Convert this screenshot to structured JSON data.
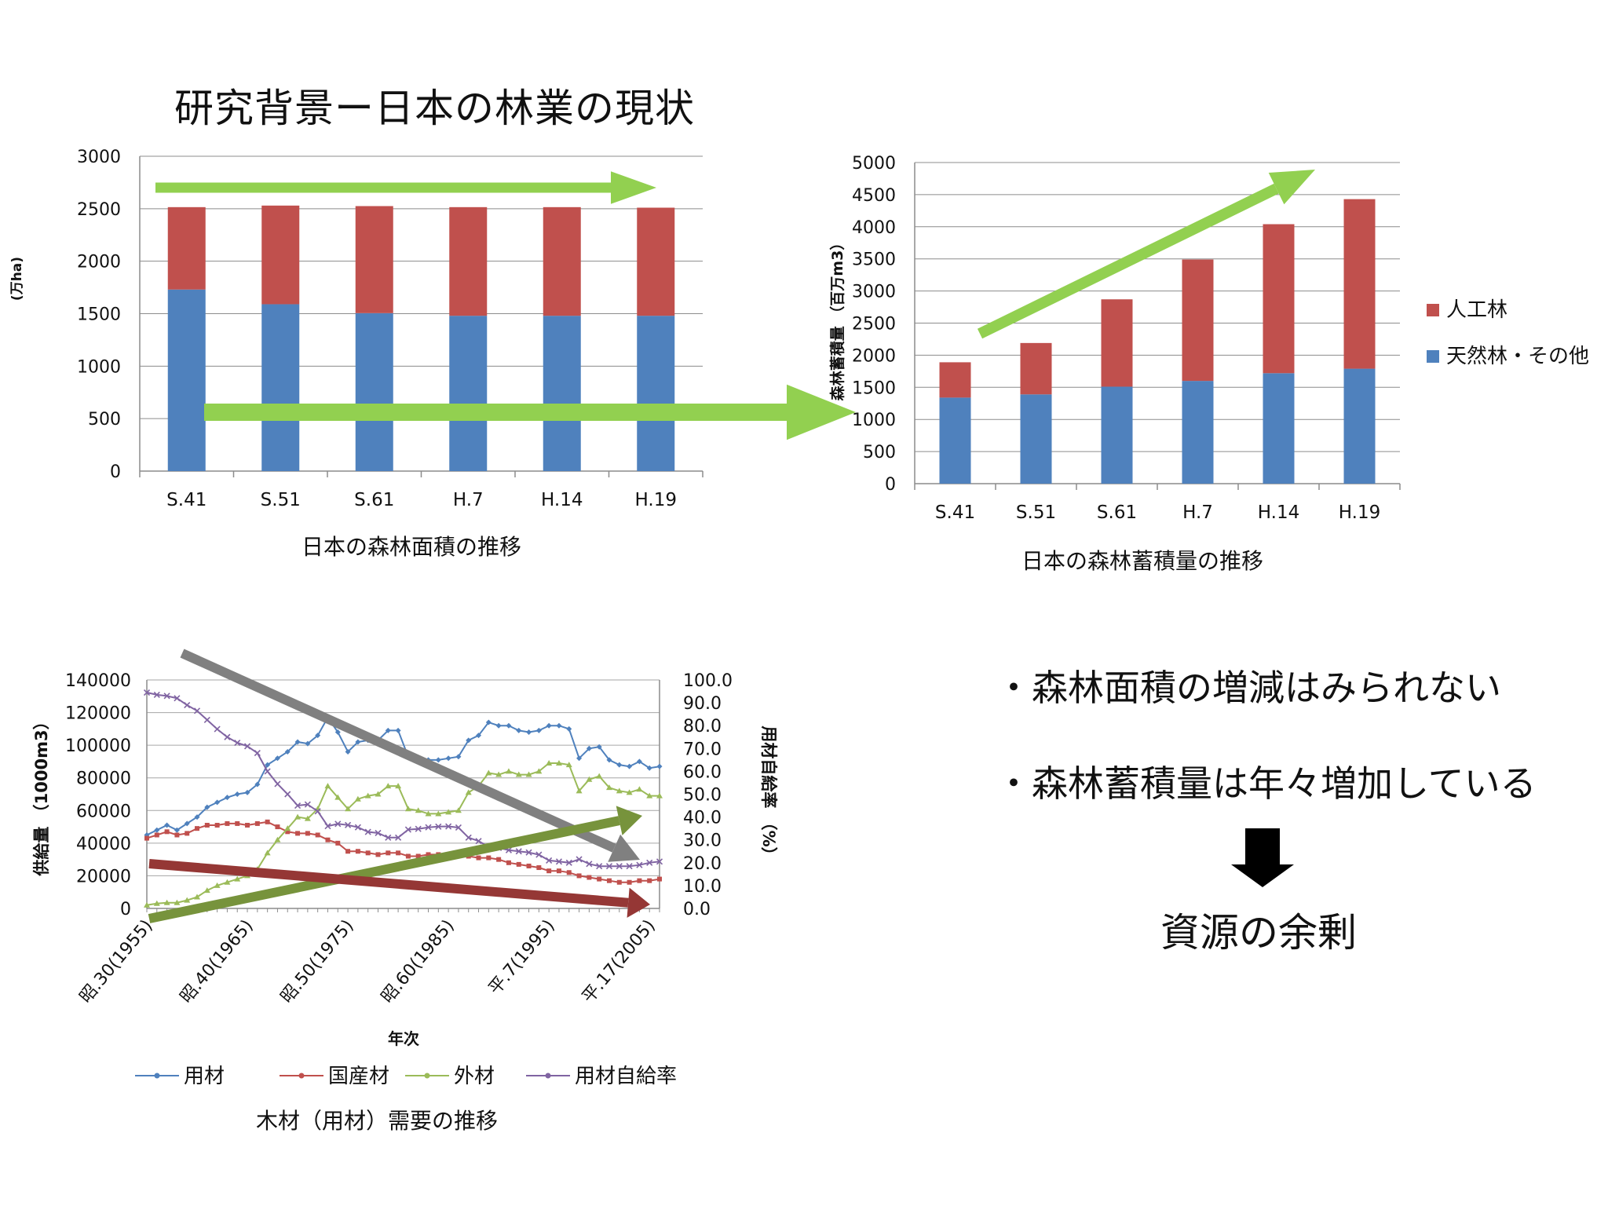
{
  "slide": {
    "title": "研究背景ー日本の林業の現状",
    "bullet1": "・森林面積の増減はみられない",
    "bullet2": "・森林蓄積量は年々増加している",
    "conclusion": "資源の余剰"
  },
  "chart_data": [
    {
      "id": "forest-area",
      "type": "bar",
      "stacked": true,
      "title": "日本の森林面積の推移",
      "ylabel": "(万ha)",
      "xlabel": "",
      "categories": [
        "S.41",
        "S.51",
        "S.61",
        "H.7",
        "H.14",
        "H.19"
      ],
      "ylim": [
        0,
        3000
      ],
      "yticks": [
        "0",
        "500",
        "1000",
        "1500",
        "2000",
        "2500",
        "3000"
      ],
      "series": [
        {
          "values": [
            1730,
            1590,
            1505,
            1480,
            1480,
            1480
          ],
          "color": "#4f81bd"
        },
        {
          "values": [
            785,
            940,
            1020,
            1035,
            1035,
            1030
          ],
          "color": "#c0504d"
        }
      ],
      "grid": true
    },
    {
      "id": "forest-stock",
      "type": "bar",
      "stacked": true,
      "title": "日本の森林蓄積量の推移",
      "ylabel": "森林蓄積量 （百万m3）",
      "xlabel": "",
      "categories": [
        "S.41",
        "S.51",
        "S.61",
        "H.7",
        "H.14",
        "H.19"
      ],
      "ylim": [
        0,
        5000
      ],
      "yticks": [
        "0",
        "500",
        "1000",
        "1500",
        "2000",
        "2500",
        "3000",
        "3500",
        "4000",
        "4500",
        "5000"
      ],
      "series": [
        {
          "name": "天然林・その他",
          "values": [
            1340,
            1390,
            1510,
            1600,
            1720,
            1790
          ],
          "color": "#4f81bd"
        },
        {
          "name": "人工林",
          "values": [
            550,
            800,
            1360,
            1890,
            2320,
            2640
          ],
          "color": "#c0504d"
        }
      ],
      "legend": "right",
      "grid": true
    },
    {
      "id": "timber-demand",
      "type": "line",
      "title": "木材（用材）需要の推移",
      "xlabel": "年次",
      "ylabel": "供給量 （1000m3）",
      "y2label": "用材自給率 （%）",
      "x_start": 1955,
      "x": [
        1955,
        1956,
        1957,
        1958,
        1959,
        1960,
        1961,
        1962,
        1963,
        1964,
        1965,
        1966,
        1967,
        1968,
        1969,
        1970,
        1971,
        1972,
        1973,
        1974,
        1975,
        1976,
        1977,
        1978,
        1979,
        1980,
        1981,
        1982,
        1983,
        1984,
        1985,
        1986,
        1987,
        1988,
        1989,
        1990,
        1991,
        1992,
        1993,
        1994,
        1995,
        1996,
        1997,
        1998,
        1999,
        2000,
        2001,
        2002,
        2003,
        2004,
        2005,
        2006
      ],
      "x_tick_labels": [
        "昭.30(1955)",
        "昭.40(1965)",
        "昭.50(1975)",
        "昭.60(1985)",
        "平.7(1995)",
        "平.17(2005)"
      ],
      "ylim": [
        0,
        140000
      ],
      "yticks": [
        "0",
        "20000",
        "40000",
        "60000",
        "80000",
        "100000",
        "120000",
        "140000"
      ],
      "y2lim": [
        0,
        100
      ],
      "y2ticks": [
        "0.0",
        "10.0",
        "20.0",
        "30.0",
        "40.0",
        "50.0",
        "60.0",
        "70.0",
        "80.0",
        "90.0",
        "100.0"
      ],
      "series": [
        {
          "name": "用材",
          "axis": "left",
          "color": "#4f81bd",
          "values": [
            45000,
            48000,
            51000,
            48000,
            52000,
            56000,
            62000,
            65000,
            68000,
            70000,
            71000,
            76000,
            88000,
            92000,
            96000,
            102000,
            101000,
            106000,
            117000,
            108000,
            96000,
            102000,
            103000,
            103000,
            109000,
            109000,
            93000,
            92000,
            91000,
            91000,
            92000,
            93000,
            103000,
            106000,
            114000,
            112000,
            112000,
            109000,
            108000,
            109000,
            112000,
            112000,
            110000,
            92000,
            98000,
            99000,
            91000,
            88000,
            87000,
            90000,
            86000,
            87000
          ]
        },
        {
          "name": "国産材",
          "axis": "left",
          "color": "#c0504d",
          "values": [
            43000,
            45000,
            47000,
            45000,
            46000,
            49000,
            51000,
            51000,
            52000,
            52000,
            51000,
            52000,
            53000,
            50000,
            47000,
            46000,
            46000,
            45000,
            42000,
            40000,
            35000,
            35000,
            34000,
            33000,
            34000,
            34000,
            32000,
            32000,
            33000,
            33000,
            33000,
            33000,
            32000,
            31000,
            31000,
            30000,
            28000,
            27000,
            26000,
            25000,
            23000,
            23000,
            22000,
            20000,
            19000,
            18000,
            17000,
            16000,
            16000,
            17000,
            17000,
            18000
          ]
        },
        {
          "name": "外材",
          "axis": "left",
          "color": "#9bbb59",
          "values": [
            2000,
            3000,
            3500,
            3500,
            5000,
            7000,
            11000,
            14000,
            16000,
            18000,
            20000,
            24000,
            34000,
            42000,
            49000,
            56000,
            55000,
            61000,
            75000,
            68000,
            61000,
            67000,
            69000,
            70000,
            75000,
            75000,
            61000,
            60000,
            58000,
            58000,
            59000,
            60000,
            71000,
            75000,
            83000,
            82000,
            84000,
            82000,
            82000,
            84000,
            89000,
            89000,
            88000,
            72000,
            79000,
            81000,
            74000,
            72000,
            71000,
            73000,
            69000,
            69000
          ]
        },
        {
          "name": "用材自給率",
          "axis": "right",
          "color": "#8064a2",
          "values": [
            94.5,
            93.5,
            93.0,
            92.0,
            89.0,
            86.5,
            82.5,
            78.5,
            75.0,
            72.5,
            71.0,
            68.0,
            60.0,
            54.5,
            50.0,
            45.0,
            45.5,
            42.5,
            36.0,
            37.0,
            36.5,
            35.5,
            33.5,
            33.0,
            31.0,
            31.0,
            34.5,
            34.8,
            35.5,
            35.8,
            35.9,
            35.4,
            31.0,
            29.5,
            27.0,
            26.5,
            25.5,
            25.0,
            24.5,
            23.5,
            21.0,
            20.5,
            20.0,
            21.5,
            19.5,
            18.5,
            18.5,
            18.5,
            18.5,
            19.0,
            20.0,
            20.5
          ]
        }
      ],
      "legend": "bottom",
      "grid": true
    }
  ]
}
